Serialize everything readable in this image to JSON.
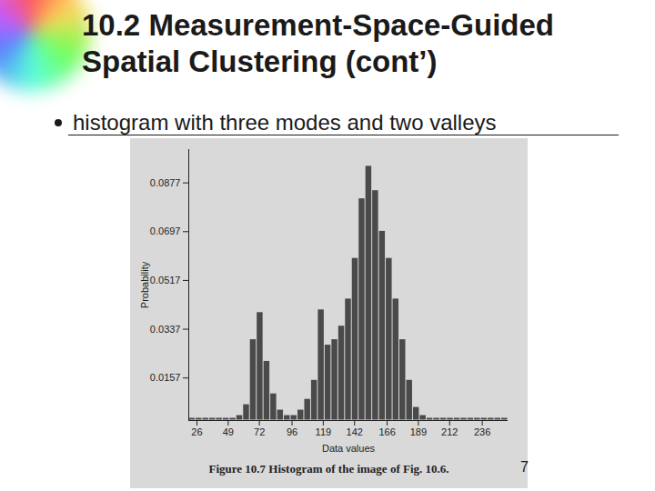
{
  "slide": {
    "title": "10.2 Measurement-Space-Guided Spatial Clustering (cont’)",
    "bullet": "histogram with three modes and two valleys",
    "page_number": "7"
  },
  "chart_data": {
    "type": "histogram",
    "x_label": "Data values",
    "y_label": "Probability",
    "caption": "Figure 10.7 Histogram of the image of Fig. 10.6.",
    "bins": [
      20,
      25,
      30,
      35,
      40,
      45,
      50,
      55,
      60,
      65,
      70,
      75,
      80,
      85,
      90,
      95,
      100,
      105,
      110,
      115,
      120,
      125,
      130,
      135,
      140,
      145,
      150,
      155,
      160,
      165,
      170,
      175,
      180,
      185,
      190,
      195,
      200,
      205,
      210,
      215,
      220,
      225,
      230,
      235,
      240,
      245,
      250,
      255
    ],
    "values": [
      0.001,
      0.001,
      0.001,
      0.001,
      0.001,
      0.001,
      0.001,
      0.002,
      0.006,
      0.03,
      0.04,
      0.022,
      0.01,
      0.004,
      0.002,
      0.002,
      0.004,
      0.008,
      0.015,
      0.041,
      0.028,
      0.03,
      0.035,
      0.045,
      0.06,
      0.082,
      0.094,
      0.085,
      0.07,
      0.06,
      0.045,
      0.03,
      0.015,
      0.005,
      0.002,
      0.001,
      0.001,
      0.001,
      0.001,
      0.001,
      0.001,
      0.001,
      0.001,
      0.001,
      0.001,
      0.001,
      0.001
    ],
    "color": "#4a4a4a",
    "xlim": [
      20,
      255
    ],
    "ylim": [
      0,
      0.1
    ],
    "xticks": [
      26,
      49,
      72,
      96,
      119,
      142,
      166,
      189,
      212,
      236
    ],
    "yticks": [
      0.0157,
      0.0337,
      0.0517,
      0.0697,
      0.0877
    ]
  }
}
